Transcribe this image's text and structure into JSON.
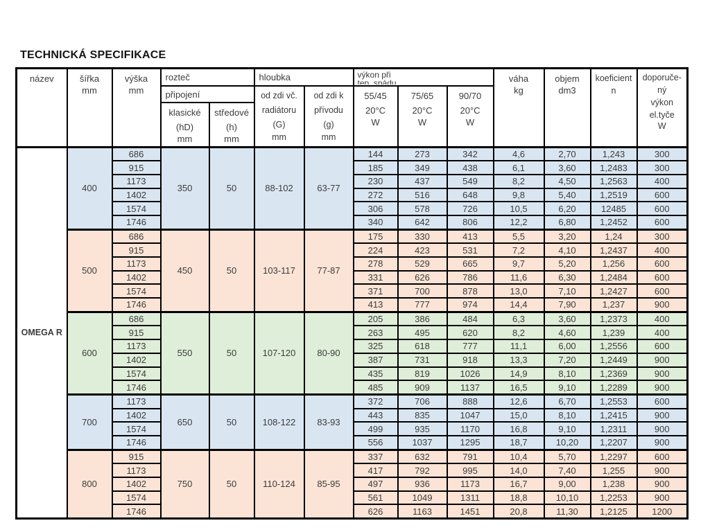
{
  "title": "TECHNICKÁ SPECIFIKACE",
  "product_name": "OMEGA R",
  "colors": {
    "blue": "#d9e6f2",
    "peach": "#fbe4d6",
    "green": "#dfeed8"
  },
  "columns": {
    "nazev": {
      "label": "název"
    },
    "sirka": {
      "label": "šířka",
      "unit": "mm"
    },
    "vyska": {
      "label": "výška",
      "unit": "mm"
    },
    "roztec": {
      "label": "rozteč",
      "sub": "připojení",
      "klasicke_l1": "klasické",
      "klasicke_l2": "(hD)",
      "klasicke_unit": "mm",
      "stredove_l1": "středové",
      "stredove_l2": "(h)",
      "stredove_unit": "mm"
    },
    "hloubka": {
      "label": "hloubka",
      "g_l1": "od zdi vč.",
      "g_l2": "radiátoru",
      "g_l3": "(G)",
      "g_unit": "mm",
      "g2_l1": "od zdi k",
      "g2_l2": "přívodu",
      "g2_l3": "(g)",
      "g2_unit": "mm"
    },
    "vykon": {
      "l1": "výkon při",
      "l2": "tep. spádu",
      "t1_l1": "55/45",
      "t1_l2": "20°C",
      "t1_unit": "W",
      "t2_l1": "75/65",
      "t2_l2": "20°C",
      "t2_unit": "W",
      "t3_l1": "90/70",
      "t3_l2": "20°C",
      "t3_unit": "W"
    },
    "vaha": {
      "label": "váha",
      "unit": "kg"
    },
    "objem": {
      "label": "objem",
      "unit": "dm3"
    },
    "koeficient": {
      "label": "koeficient",
      "unit": "n"
    },
    "doporuceny": {
      "l1": "doporuče-",
      "l2": "ný",
      "l3": "výkon",
      "l4": "el.tyče",
      "unit": "W"
    }
  },
  "row_fields": [
    "vyska_mm",
    "vykon_55_45_W",
    "vykon_75_65_W",
    "vykon_90_70_W",
    "vaha_kg",
    "objem_dm3",
    "koeficient_n",
    "el_tyc_W"
  ],
  "groups": [
    {
      "sirka": "400",
      "color": "blue",
      "klasicke": "350",
      "stredove": "50",
      "hloubka_g": "88-102",
      "hloubka_g2": "63-77",
      "rows": [
        [
          "686",
          "144",
          "273",
          "342",
          "4,6",
          "2,70",
          "1,243",
          "300"
        ],
        [
          "915",
          "185",
          "349",
          "438",
          "6,1",
          "3,60",
          "1,2483",
          "300"
        ],
        [
          "1173",
          "230",
          "437",
          "549",
          "8,2",
          "4,50",
          "1,2563",
          "400"
        ],
        [
          "1402",
          "272",
          "516",
          "648",
          "9,8",
          "5,40",
          "1,2519",
          "600"
        ],
        [
          "1574",
          "306",
          "578",
          "726",
          "10,5",
          "6,20",
          "12485",
          "600"
        ],
        [
          "1746",
          "340",
          "642",
          "806",
          "12,2",
          "6,80",
          "1,2452",
          "600"
        ]
      ]
    },
    {
      "sirka": "500",
      "color": "peach",
      "klasicke": "450",
      "stredove": "50",
      "hloubka_g": "103-117",
      "hloubka_g2": "77-87",
      "rows": [
        [
          "686",
          "175",
          "330",
          "413",
          "5,5",
          "3,20",
          "1,24",
          "300"
        ],
        [
          "915",
          "224",
          "423",
          "531",
          "7,2",
          "4,10",
          "1,2437",
          "400"
        ],
        [
          "1173",
          "278",
          "529",
          "665",
          "9,7",
          "5,20",
          "1,256",
          "600"
        ],
        [
          "1402",
          "331",
          "626",
          "786",
          "11,6",
          "6,30",
          "1,2484",
          "600"
        ],
        [
          "1574",
          "371",
          "700",
          "878",
          "13,0",
          "7,10",
          "1,2427",
          "600"
        ],
        [
          "1746",
          "413",
          "777",
          "974",
          "14,4",
          "7,90",
          "1,237",
          "900"
        ]
      ]
    },
    {
      "sirka": "600",
      "color": "green",
      "klasicke": "550",
      "stredove": "50",
      "hloubka_g": "107-120",
      "hloubka_g2": "80-90",
      "rows": [
        [
          "686",
          "205",
          "386",
          "484",
          "6,3",
          "3,60",
          "1,2373",
          "400"
        ],
        [
          "915",
          "263",
          "495",
          "620",
          "8,2",
          "4,60",
          "1,239",
          "400"
        ],
        [
          "1173",
          "325",
          "618",
          "777",
          "11,1",
          "6,00",
          "1,2556",
          "600"
        ],
        [
          "1402",
          "387",
          "731",
          "918",
          "13,3",
          "7,20",
          "1,2449",
          "900"
        ],
        [
          "1574",
          "435",
          "819",
          "1026",
          "14,9",
          "8,10",
          "1,2369",
          "900"
        ],
        [
          "1746",
          "485",
          "909",
          "1137",
          "16,5",
          "9,10",
          "1,2289",
          "900"
        ]
      ]
    },
    {
      "sirka": "700",
      "color": "blue",
      "klasicke": "650",
      "stredove": "50",
      "hloubka_g": "108-122",
      "hloubka_g2": "83-93",
      "rows": [
        [
          "1173",
          "372",
          "706",
          "888",
          "12,6",
          "6,70",
          "1,2553",
          "600"
        ],
        [
          "1402",
          "443",
          "835",
          "1047",
          "15,0",
          "8,10",
          "1,2415",
          "900"
        ],
        [
          "1574",
          "499",
          "935",
          "1170",
          "16,8",
          "9,10",
          "1,2311",
          "900"
        ],
        [
          "1746",
          "556",
          "1037",
          "1295",
          "18,7",
          "10,20",
          "1,2207",
          "900"
        ]
      ]
    },
    {
      "sirka": "800",
      "color": "peach",
      "klasicke": "750",
      "stredove": "50",
      "hloubka_g": "110-124",
      "hloubka_g2": "85-95",
      "rows": [
        [
          "915",
          "337",
          "632",
          "791",
          "10,4",
          "5,70",
          "1,2297",
          "600"
        ],
        [
          "1173",
          "417",
          "792",
          "995",
          "14,0",
          "7,40",
          "1,255",
          "900"
        ],
        [
          "1402",
          "497",
          "936",
          "1173",
          "16,7",
          "9,00",
          "1,238",
          "900"
        ],
        [
          "1574",
          "561",
          "1049",
          "1311",
          "18,8",
          "10,10",
          "1,2253",
          "900"
        ],
        [
          "1746",
          "626",
          "1163",
          "1451",
          "20,8",
          "11,30",
          "1,2125",
          "1200"
        ]
      ]
    }
  ]
}
